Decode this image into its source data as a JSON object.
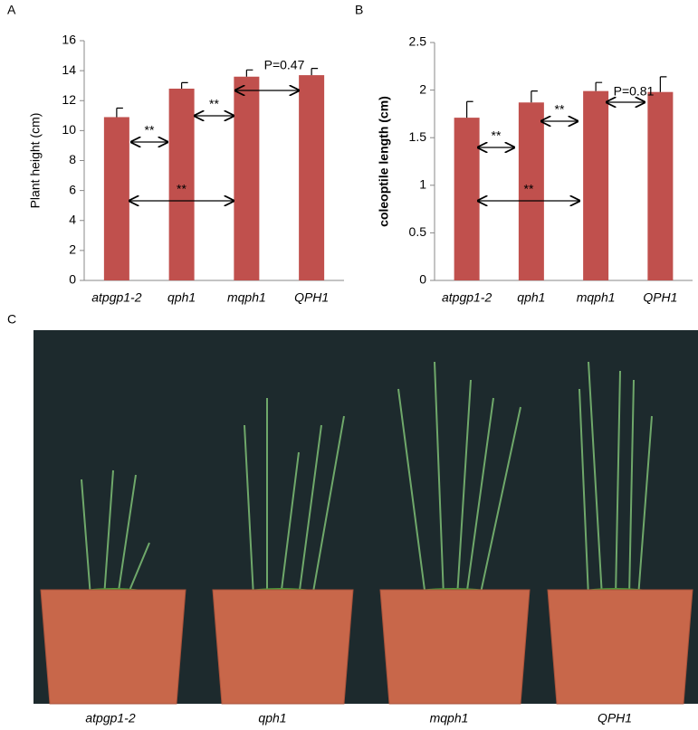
{
  "chart_data": [
    {
      "type": "bar",
      "panel_label": "A",
      "y_label": "Plant height (cm)",
      "categories": [
        "atpgp1-2",
        "qph1",
        "mqph1",
        "QPH1"
      ],
      "values": [
        10.9,
        12.8,
        13.6,
        13.7
      ],
      "errors": [
        0.6,
        0.4,
        0.45,
        0.45
      ],
      "color": "#c0504d",
      "ylim": [
        0,
        16
      ],
      "yticks": [
        0,
        2,
        4,
        6,
        8,
        10,
        12,
        14,
        16
      ],
      "annotations": [
        {
          "text": "**"
        },
        {
          "text": "**"
        },
        {
          "text": "**"
        },
        {
          "text": "P=0.47"
        }
      ]
    },
    {
      "type": "bar",
      "panel_label": "B",
      "y_label": "coleoptile length (cm)",
      "categories": [
        "atpgp1-2",
        "qph1",
        "mqph1",
        "QPH1"
      ],
      "values": [
        1.71,
        1.87,
        1.99,
        1.98
      ],
      "errors": [
        0.17,
        0.12,
        0.09,
        0.16
      ],
      "color": "#c0504d",
      "ylim": [
        0,
        2.5
      ],
      "yticks": [
        0,
        0.5,
        1,
        1.5,
        2,
        2.5
      ],
      "annotations": [
        {
          "text": "**"
        },
        {
          "text": "**"
        },
        {
          "text": "**"
        },
        {
          "text": "P=0.81"
        }
      ]
    }
  ],
  "photo": {
    "label": "C",
    "captions": [
      "atpgp1-2",
      "qph1",
      "mqph1",
      "QPH1"
    ]
  }
}
